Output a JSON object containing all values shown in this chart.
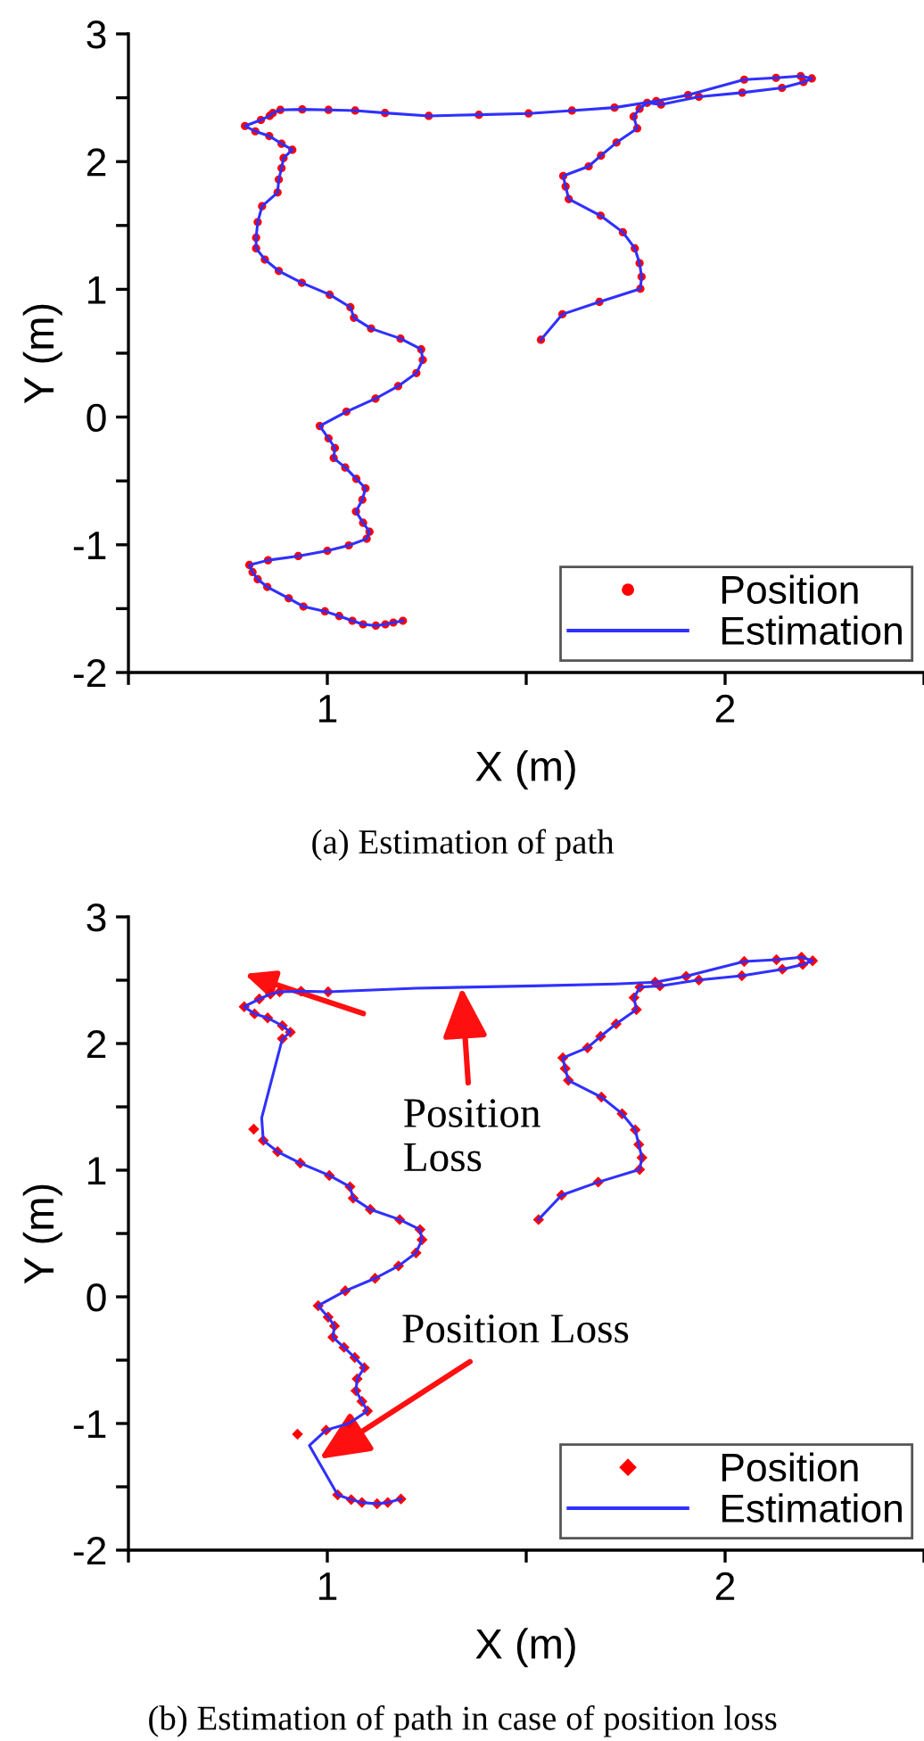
{
  "chart_data": [
    {
      "type": "scatter",
      "title": "(a) Estimation of path",
      "xlabel": "X (m)",
      "ylabel": "Y (m)",
      "xlim": [
        0.5,
        2.5
      ],
      "ylim": [
        -2,
        3
      ],
      "xticks": [
        {
          "value": 0.5,
          "label": null
        },
        1,
        {
          "value": 1.5,
          "label": null
        },
        2,
        {
          "value": 2.5,
          "label": null
        }
      ],
      "yticks": [
        -2,
        {
          "value": -1.5,
          "label": null
        },
        -1,
        {
          "value": -0.5,
          "label": null
        },
        0,
        {
          "value": 0.5,
          "label": null
        },
        1,
        {
          "value": 1.5,
          "label": null
        },
        2,
        {
          "value": 2.5,
          "label": null
        },
        3
      ],
      "legend": "bottom right",
      "grid": false,
      "series": [
        {
          "name": "Position",
          "marker": "circle",
          "color": "#ff0000",
          "x": [
            1.537,
            1.591,
            1.684,
            1.787,
            1.79,
            1.785,
            1.773,
            1.743,
            1.687,
            1.607,
            1.599,
            1.593,
            1.657,
            1.688,
            1.727,
            1.779,
            1.77,
            1.785,
            1.804,
            1.839,
            1.934,
            2.043,
            2.143,
            2.197,
            2.218,
            2.19,
            2.128,
            2.048,
            1.907,
            1.827,
            1.722,
            1.615,
            1.506,
            1.381,
            1.255,
            1.145,
            1.07,
            1.003,
            0.937,
            0.882,
            0.863,
            0.855,
            0.833,
            0.793,
            0.819,
            0.854,
            0.885,
            0.912,
            0.89,
            0.885,
            0.878,
            0.875,
            0.836,
            0.825,
            0.821,
            0.821,
            0.843,
            0.878,
            0.936,
            1.006,
            1.058,
            1.067,
            1.11,
            1.184,
            1.236,
            1.24,
            1.224,
            1.178,
            1.121,
            1.048,
            0.981,
            1.003,
            1.019,
            1.016,
            1.045,
            1.073,
            1.096,
            1.088,
            1.072,
            1.09,
            1.106,
            1.099,
            1.054,
            1.0,
            0.927,
            0.851,
            0.804,
            0.812,
            0.825,
            0.849,
            0.903,
            0.94,
            0.994,
            1.03,
            1.063,
            1.09,
            1.122,
            1.146,
            1.166,
            1.19
          ],
          "values": [
            0.605,
            0.805,
            0.902,
            1.005,
            1.098,
            1.205,
            1.321,
            1.447,
            1.577,
            1.707,
            1.805,
            1.888,
            1.963,
            2.047,
            2.149,
            2.26,
            2.353,
            2.414,
            2.46,
            2.447,
            2.507,
            2.54,
            2.577,
            2.623,
            2.651,
            2.67,
            2.656,
            2.642,
            2.521,
            2.474,
            2.423,
            2.4,
            2.377,
            2.367,
            2.358,
            2.381,
            2.4,
            2.405,
            2.409,
            2.405,
            2.381,
            2.358,
            2.326,
            2.279,
            2.237,
            2.2,
            2.14,
            2.093,
            2.028,
            1.949,
            1.86,
            1.758,
            1.651,
            1.526,
            1.405,
            1.321,
            1.233,
            1.144,
            1.051,
            0.958,
            0.86,
            0.777,
            0.693,
            0.614,
            0.53,
            0.447,
            0.344,
            0.242,
            0.144,
            0.042,
            -0.07,
            -0.167,
            -0.242,
            -0.321,
            -0.395,
            -0.484,
            -0.558,
            -0.647,
            -0.74,
            -0.828,
            -0.898,
            -0.953,
            -1.005,
            -1.047,
            -1.088,
            -1.121,
            -1.158,
            -1.214,
            -1.27,
            -1.33,
            -1.419,
            -1.484,
            -1.521,
            -1.558,
            -1.595,
            -1.623,
            -1.633,
            -1.623,
            -1.609,
            -1.595
          ]
        },
        {
          "name": "Estimation",
          "type": "line",
          "marker": "none",
          "line_style": "solid",
          "color": "#3030ff",
          "x": [
            1.537,
            1.591,
            1.684,
            1.787,
            1.79,
            1.785,
            1.773,
            1.743,
            1.687,
            1.607,
            1.599,
            1.593,
            1.657,
            1.688,
            1.727,
            1.779,
            1.77,
            1.785,
            1.804,
            1.839,
            1.934,
            2.043,
            2.143,
            2.197,
            2.218,
            2.19,
            2.128,
            2.048,
            1.907,
            1.827,
            1.722,
            1.615,
            1.506,
            1.381,
            1.255,
            1.145,
            1.07,
            1.003,
            0.937,
            0.882,
            0.863,
            0.855,
            0.833,
            0.793,
            0.819,
            0.854,
            0.885,
            0.912,
            0.89,
            0.885,
            0.878,
            0.875,
            0.836,
            0.825,
            0.821,
            0.821,
            0.843,
            0.878,
            0.936,
            1.006,
            1.058,
            1.067,
            1.11,
            1.184,
            1.236,
            1.24,
            1.224,
            1.178,
            1.121,
            1.048,
            0.981,
            1.003,
            1.019,
            1.016,
            1.045,
            1.073,
            1.096,
            1.088,
            1.072,
            1.09,
            1.106,
            1.099,
            1.054,
            1.0,
            0.927,
            0.851,
            0.804,
            0.812,
            0.825,
            0.849,
            0.903,
            0.94,
            0.994,
            1.03,
            1.063,
            1.09,
            1.122,
            1.146,
            1.166,
            1.19
          ],
          "values": [
            0.605,
            0.805,
            0.902,
            1.005,
            1.098,
            1.205,
            1.321,
            1.447,
            1.577,
            1.707,
            1.805,
            1.888,
            1.963,
            2.047,
            2.149,
            2.26,
            2.353,
            2.414,
            2.46,
            2.447,
            2.507,
            2.54,
            2.577,
            2.623,
            2.651,
            2.67,
            2.656,
            2.642,
            2.521,
            2.474,
            2.423,
            2.4,
            2.377,
            2.367,
            2.358,
            2.381,
            2.4,
            2.405,
            2.409,
            2.405,
            2.381,
            2.358,
            2.326,
            2.279,
            2.237,
            2.2,
            2.14,
            2.093,
            2.028,
            1.949,
            1.86,
            1.758,
            1.651,
            1.526,
            1.405,
            1.321,
            1.233,
            1.144,
            1.051,
            0.958,
            0.86,
            0.777,
            0.693,
            0.614,
            0.53,
            0.447,
            0.344,
            0.242,
            0.144,
            0.042,
            -0.07,
            -0.167,
            -0.242,
            -0.321,
            -0.395,
            -0.484,
            -0.558,
            -0.647,
            -0.74,
            -0.828,
            -0.898,
            -0.953,
            -1.005,
            -1.047,
            -1.088,
            -1.121,
            -1.158,
            -1.214,
            -1.27,
            -1.33,
            -1.419,
            -1.484,
            -1.521,
            -1.558,
            -1.595,
            -1.623,
            -1.633,
            -1.623,
            -1.609,
            -1.595
          ]
        }
      ]
    },
    {
      "type": "scatter",
      "title": "(b) Estimation of path in case of position loss",
      "xlabel": "X (m)",
      "ylabel": "Y (m)",
      "xlim": [
        0.5,
        2.5
      ],
      "ylim": [
        -2,
        3
      ],
      "xticks": [
        {
          "value": 0.5,
          "label": null
        },
        1,
        {
          "value": 1.5,
          "label": null
        },
        2,
        {
          "value": 2.5,
          "label": null
        }
      ],
      "yticks": [
        -2,
        {
          "value": -1.5,
          "label": null
        },
        -1,
        {
          "value": -0.5,
          "label": null
        },
        0,
        {
          "value": 0.5,
          "label": null
        },
        1,
        {
          "value": 1.5,
          "label": null
        },
        2,
        {
          "value": 2.5,
          "label": null
        },
        3
      ],
      "legend": "bottom right",
      "grid": false,
      "annotations": [
        {
          "text": "Position\nLoss",
          "x": 1.338,
          "y": 2.445
        },
        {
          "text": "Position Loss",
          "x": 0.98,
          "y": -1.28
        }
      ],
      "series": [
        {
          "name": "Position",
          "marker": "diamond",
          "color": "#ff0000",
          "x": [
            1.531,
            1.589,
            1.681,
            1.785,
            1.791,
            1.783,
            1.774,
            1.741,
            1.689,
            1.606,
            1.598,
            1.592,
            1.654,
            1.687,
            1.726,
            1.777,
            1.771,
            1.786,
            1.824,
            1.836,
            1.902,
            1.934,
            2.042,
            2.144,
            2.195,
            2.22,
            2.192,
            2.129,
            2.048,
            1.002,
            0.934,
            0.88,
            0.857,
            0.829,
            0.791,
            0.817,
            0.85,
            0.887,
            0.907,
            0.887,
            0.815,
            0.839,
            0.875,
            0.932,
            1.005,
            1.057,
            1.065,
            1.108,
            1.182,
            1.233,
            1.238,
            1.223,
            1.179,
            1.12,
            1.045,
            0.977,
            1.002,
            1.018,
            1.014,
            1.042,
            1.069,
            1.093,
            1.075,
            1.072,
            1.087,
            1.101,
            1.054,
            0.997,
            0.925,
            1.026,
            1.06,
            1.087,
            1.125,
            1.152,
            1.185
          ],
          "values": [
            0.61,
            0.803,
            0.906,
            1.005,
            1.099,
            1.202,
            1.319,
            1.446,
            1.577,
            1.709,
            1.803,
            1.887,
            1.967,
            2.056,
            2.155,
            2.268,
            2.362,
            2.446,
            2.484,
            2.455,
            2.531,
            2.502,
            2.535,
            2.587,
            2.624,
            2.653,
            2.681,
            2.662,
            2.648,
            2.408,
            2.413,
            2.408,
            2.39,
            2.352,
            2.291,
            2.235,
            2.202,
            2.141,
            2.089,
            2.038,
            1.324,
            1.235,
            1.146,
            1.056,
            0.958,
            0.869,
            0.779,
            0.69,
            0.61,
            0.531,
            0.451,
            0.347,
            0.244,
            0.146,
            0.047,
            -0.07,
            -0.16,
            -0.23,
            -0.319,
            -0.399,
            -0.479,
            -0.559,
            -0.648,
            -0.742,
            -0.826,
            -0.901,
            -1.0,
            -1.052,
            -1.085,
            -1.563,
            -1.601,
            -1.624,
            -1.634,
            -1.624,
            -1.596
          ]
        },
        {
          "name": "Estimation",
          "type": "line",
          "marker": "none",
          "line_style": "solid",
          "color": "#3030ff",
          "x": [
            1.531,
            1.589,
            1.681,
            1.785,
            1.791,
            1.783,
            1.774,
            1.741,
            1.689,
            1.606,
            1.598,
            1.592,
            1.654,
            1.687,
            1.726,
            1.777,
            1.771,
            1.786,
            1.836,
            1.934,
            2.042,
            2.144,
            2.195,
            2.22,
            2.192,
            2.129,
            2.048,
            1.902,
            1.824,
            1.723,
            1.519,
            1.223,
            1.002,
            0.934,
            0.88,
            0.857,
            0.829,
            0.791,
            0.817,
            0.85,
            0.887,
            0.907,
            0.887,
            0.835,
            0.839,
            0.875,
            0.932,
            1.005,
            1.057,
            1.065,
            1.108,
            1.182,
            1.233,
            1.238,
            1.223,
            1.179,
            1.12,
            1.045,
            0.977,
            1.002,
            1.018,
            1.014,
            1.042,
            1.069,
            1.093,
            1.075,
            1.072,
            1.087,
            1.101,
            1.054,
            0.997,
            0.955,
            1.026,
            1.06,
            1.087,
            1.125,
            1.152,
            1.185
          ],
          "values": [
            0.61,
            0.803,
            0.906,
            1.005,
            1.099,
            1.202,
            1.319,
            1.446,
            1.577,
            1.709,
            1.803,
            1.887,
            1.967,
            2.056,
            2.155,
            2.268,
            2.362,
            2.446,
            2.455,
            2.502,
            2.535,
            2.587,
            2.624,
            2.653,
            2.681,
            2.662,
            2.648,
            2.531,
            2.484,
            2.47,
            2.455,
            2.437,
            2.408,
            2.413,
            2.408,
            2.39,
            2.352,
            2.291,
            2.235,
            2.202,
            2.141,
            2.089,
            2.038,
            1.413,
            1.235,
            1.146,
            1.056,
            0.958,
            0.869,
            0.779,
            0.69,
            0.61,
            0.531,
            0.451,
            0.347,
            0.244,
            0.146,
            0.047,
            -0.07,
            -0.16,
            -0.23,
            -0.319,
            -0.399,
            -0.479,
            -0.559,
            -0.648,
            -0.742,
            -0.826,
            -0.901,
            -1.0,
            -1.052,
            -1.174,
            -1.563,
            -1.601,
            -1.624,
            -1.634,
            -1.624,
            -1.596
          ]
        }
      ]
    }
  ]
}
